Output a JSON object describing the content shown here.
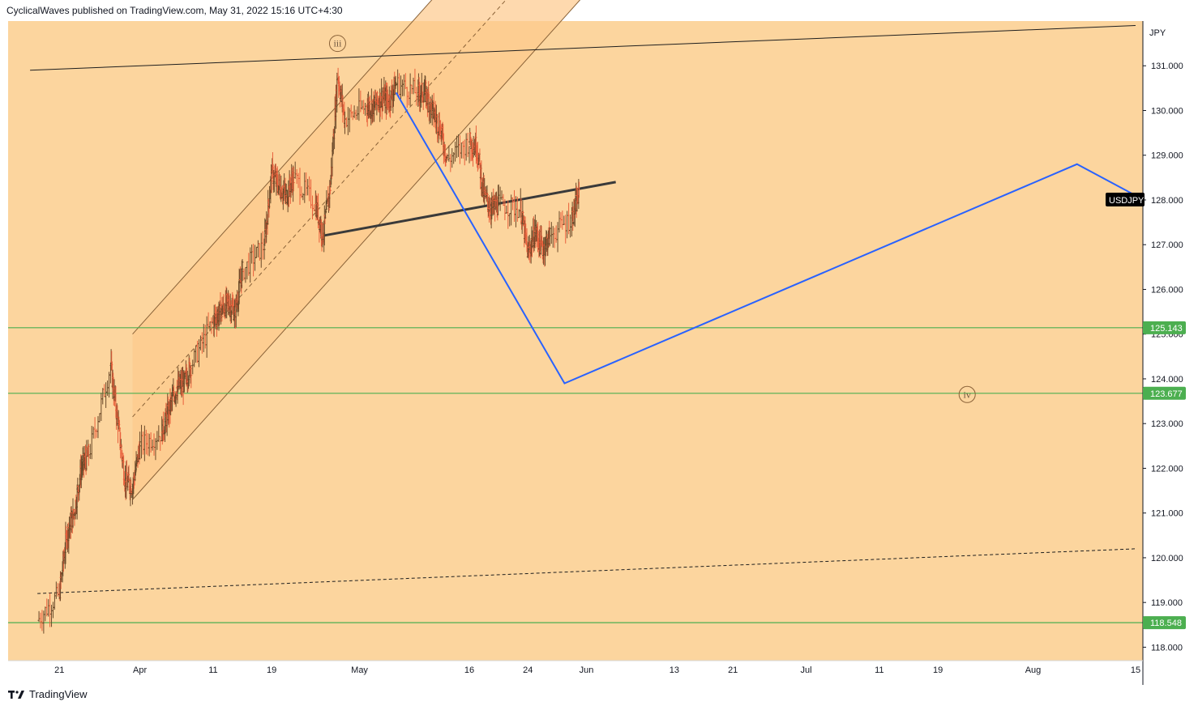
{
  "header": {
    "publisher": "CyclicalWaves published on TradingView.com, May 31, 2022 15:16 UTC+4:30"
  },
  "footer": {
    "brand": "TradingView"
  },
  "colors": {
    "background": "#fcd59e",
    "channel_fill": "#fdc98c",
    "candle_up": "#6b4a2a",
    "candle_down": "#e8603c",
    "blue_path": "#2962ff",
    "green_line": "#4caf50",
    "symbol_badge": "#000000"
  },
  "chart_data": {
    "type": "candlestick",
    "symbol": "USDJPY",
    "currency": "JPY",
    "ylim": [
      117.7,
      132.0
    ],
    "y_ticks": [
      118,
      119,
      120,
      121,
      122,
      123,
      124,
      125,
      126,
      127,
      128,
      129,
      130,
      131
    ],
    "y_tick_labels": [
      "118.000",
      "119.000",
      "120.000",
      "121.000",
      "122.000",
      "123.000",
      "124.000",
      "125.000",
      "126.000",
      "127.000",
      "128.000",
      "129.000",
      "130.000",
      "131.000"
    ],
    "x_tick_labels": [
      "21",
      "Apr",
      "11",
      "19",
      "May",
      "16",
      "24",
      "Jun",
      "13",
      "21",
      "Jul",
      "11",
      "19",
      "Aug",
      "15"
    ],
    "x_tick_dates": [
      "2022-03-21",
      "2022-04-01",
      "2022-04-11",
      "2022-04-19",
      "2022-05-01",
      "2022-05-16",
      "2022-05-24",
      "2022-06-01",
      "2022-06-13",
      "2022-06-21",
      "2022-07-01",
      "2022-07-11",
      "2022-07-19",
      "2022-08-01",
      "2022-08-15"
    ],
    "price_path": [
      [
        "2022-03-18",
        118.6
      ],
      [
        "2022-03-21",
        119.2
      ],
      [
        "2022-03-22",
        120.5
      ],
      [
        "2022-03-23",
        121.0
      ],
      [
        "2022-03-24",
        122.0
      ],
      [
        "2022-03-25",
        122.3
      ],
      [
        "2022-03-28",
        124.3
      ],
      [
        "2022-03-29",
        123.0
      ],
      [
        "2022-03-30",
        121.7
      ],
      [
        "2022-03-31",
        121.6
      ],
      [
        "2022-04-01",
        122.5
      ],
      [
        "2022-04-04",
        122.8
      ],
      [
        "2022-04-05",
        123.3
      ],
      [
        "2022-04-06",
        123.8
      ],
      [
        "2022-04-07",
        123.9
      ],
      [
        "2022-04-08",
        124.3
      ],
      [
        "2022-04-11",
        125.3
      ],
      [
        "2022-04-12",
        125.5
      ],
      [
        "2022-04-13",
        125.7
      ],
      [
        "2022-04-14",
        125.5
      ],
      [
        "2022-04-15",
        126.4
      ],
      [
        "2022-04-18",
        127.0
      ],
      [
        "2022-04-19",
        128.6
      ],
      [
        "2022-04-20",
        128.3
      ],
      [
        "2022-04-21",
        128.1
      ],
      [
        "2022-04-22",
        128.5
      ],
      [
        "2022-04-25",
        127.9
      ],
      [
        "2022-04-26",
        127.2
      ],
      [
        "2022-04-27",
        128.3
      ],
      [
        "2022-04-28",
        130.8
      ],
      [
        "2022-04-29",
        129.8
      ],
      [
        "2022-05-02",
        130.1
      ],
      [
        "2022-05-03",
        130.1
      ],
      [
        "2022-05-04",
        130.3
      ],
      [
        "2022-05-05",
        130.2
      ],
      [
        "2022-05-06",
        130.6
      ],
      [
        "2022-05-09",
        130.4
      ],
      [
        "2022-05-10",
        130.4
      ],
      [
        "2022-05-11",
        130.0
      ],
      [
        "2022-05-12",
        129.6
      ],
      [
        "2022-05-13",
        128.9
      ],
      [
        "2022-05-16",
        129.3
      ],
      [
        "2022-05-17",
        129.2
      ],
      [
        "2022-05-18",
        128.1
      ],
      [
        "2022-05-19",
        127.8
      ],
      [
        "2022-05-20",
        127.9
      ],
      [
        "2022-05-23",
        127.8
      ],
      [
        "2022-05-24",
        126.8
      ],
      [
        "2022-05-25",
        127.3
      ],
      [
        "2022-05-26",
        126.9
      ],
      [
        "2022-05-27",
        127.2
      ],
      [
        "2022-05-30",
        127.6
      ],
      [
        "2022-05-31",
        128.1
      ]
    ],
    "horizontal_levels": [
      {
        "value": 125.143,
        "label": "125.143"
      },
      {
        "value": 123.677,
        "label": "123.677"
      },
      {
        "value": 118.548,
        "label": "118.548"
      }
    ],
    "last_price_label": "USDJPY",
    "last_price_value": 128.0,
    "projection_path": [
      [
        "2022-05-06",
        130.4
      ],
      [
        "2022-05-29",
        123.9
      ],
      [
        "2022-08-07",
        128.8
      ],
      [
        "2022-08-15",
        128.1
      ]
    ],
    "trend_lines": [
      {
        "style": "solid",
        "points": [
          [
            "2022-03-17",
            130.9
          ],
          [
            "2022-08-15",
            131.9
          ]
        ]
      },
      {
        "style": "solid-thick",
        "points": [
          [
            "2022-04-26",
            127.2
          ],
          [
            "2022-06-05",
            128.4
          ]
        ]
      },
      {
        "style": "dashed",
        "points": [
          [
            "2022-03-18",
            119.2
          ],
          [
            "2022-08-15",
            120.2
          ]
        ]
      }
    ],
    "channel": {
      "lower": [
        [
          "2022-03-31",
          121.3
        ],
        [
          "2022-06-03",
          133.0
        ]
      ],
      "upper": [
        [
          "2022-03-31",
          125.0
        ],
        [
          "2022-06-03",
          136.7
        ]
      ]
    },
    "wave_labels": [
      {
        "text": "iii",
        "date": "2022-04-28",
        "value": 131.5
      },
      {
        "text": "iv",
        "date": "2022-07-23",
        "value": 123.65
      }
    ],
    "grid": false,
    "legend": "none"
  }
}
